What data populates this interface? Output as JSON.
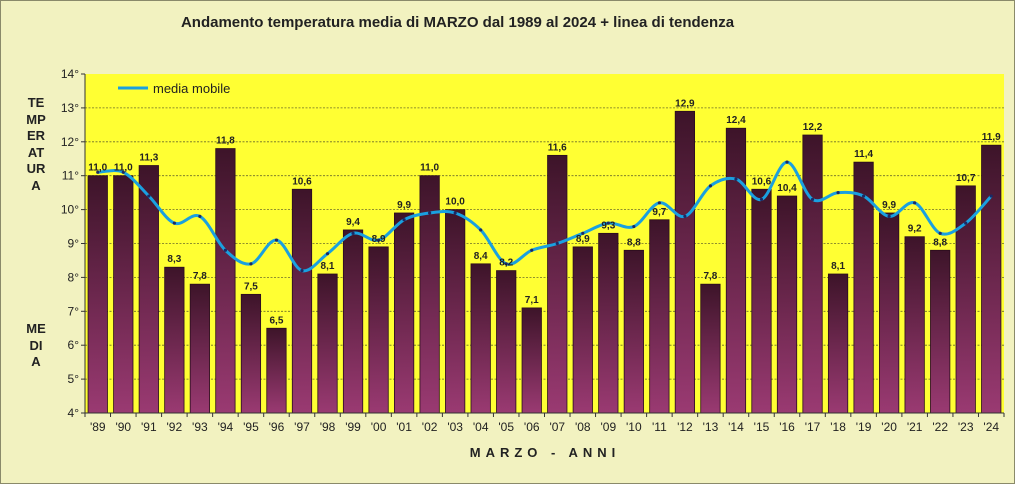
{
  "chart_data": {
    "type": "bar",
    "title": "Andamento temperatura media di MARZO dal 1989 al 2024 + linea di tendenza",
    "ylabel_top": "TEMPERATURA",
    "ylabel_bottom": "MEDIA",
    "xlabel": "MARZO - ANNI",
    "categories": [
      "'89",
      "'90",
      "'91",
      "'92",
      "'93",
      "'94",
      "'95",
      "'96",
      "'97",
      "'98",
      "'99",
      "'00",
      "'01",
      "'02",
      "'03",
      "'04",
      "'05",
      "'06",
      "'07",
      "'08",
      "'09",
      "'10",
      "'11",
      "'12",
      "'13",
      "'14",
      "'15",
      "'16",
      "'17",
      "'18",
      "'19",
      "'20",
      "'21",
      "'22",
      "'23",
      "'24"
    ],
    "values": [
      11.0,
      11.0,
      11.3,
      8.3,
      7.8,
      11.8,
      7.5,
      6.5,
      10.6,
      8.1,
      9.4,
      8.9,
      9.9,
      11.0,
      10.0,
      8.4,
      8.2,
      7.1,
      11.6,
      8.9,
      9.3,
      8.8,
      9.7,
      12.9,
      7.8,
      12.4,
      10.6,
      10.4,
      12.2,
      8.1,
      11.4,
      9.9,
      9.2,
      8.8,
      10.7,
      11.9
    ],
    "data_labels": [
      "11,0",
      "11,0",
      "11,3",
      "8,3",
      "7,8",
      "11,8",
      "7,5",
      "6,5",
      "10,6",
      "8,1",
      "9,4",
      "8,9",
      "9,9",
      "11,0",
      "10,0",
      "8,4",
      "8,2",
      "7,1",
      "11,6",
      "8,9",
      "9,3",
      "8,8",
      "9,7",
      "12,9",
      "7,8",
      "12,4",
      "10,6",
      "10,4",
      "12,2",
      "8,1",
      "11,4",
      "9,9",
      "9,2",
      "8,8",
      "10,7",
      "11,9"
    ],
    "trend": {
      "name": "media mobile",
      "values": [
        11.1,
        11.1,
        10.4,
        9.6,
        9.8,
        8.8,
        8.4,
        9.1,
        8.2,
        8.7,
        9.3,
        9.1,
        9.7,
        9.9,
        9.9,
        9.4,
        8.4,
        8.8,
        9.0,
        9.3,
        9.6,
        9.5,
        10.2,
        9.8,
        10.7,
        10.9,
        10.3,
        11.4,
        10.3,
        10.5,
        10.4,
        9.8,
        10.2,
        9.3,
        9.6,
        10.4
      ],
      "color": "#1aa0e0"
    },
    "yticks": [
      "4°",
      "5°",
      "6°",
      "7°",
      "8°",
      "9°",
      "10°",
      "11°",
      "12°",
      "13°",
      "14°"
    ],
    "ylim": [
      4,
      14
    ],
    "grid": true,
    "legend_position": "top-left",
    "colors": {
      "plot_background": "#ffff33",
      "page_background": "#f2f2c0",
      "bar_top": "#3d1429",
      "bar_bottom": "#9a3a72",
      "trend_line": "#1aa0e0",
      "trend_dots": "#1a2a66"
    }
  }
}
